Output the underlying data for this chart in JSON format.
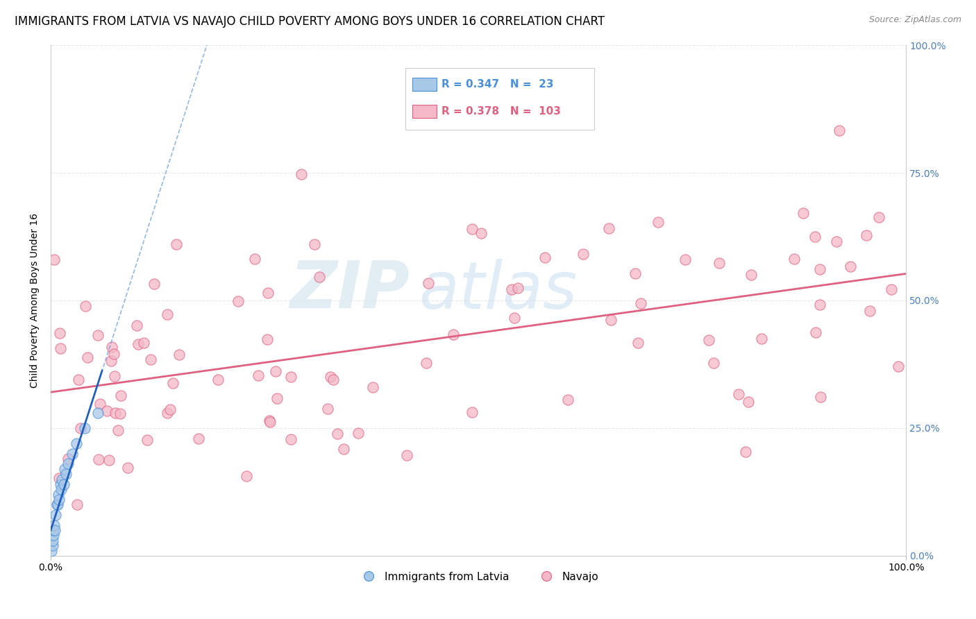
{
  "title": "IMMIGRANTS FROM LATVIA VS NAVAJO CHILD POVERTY AMONG BOYS UNDER 16 CORRELATION CHART",
  "source": "Source: ZipAtlas.com",
  "ylabel": "Child Poverty Among Boys Under 16",
  "watermark_zip": "ZIP",
  "watermark_atlas": "atlas",
  "legend_entries": [
    "Immigrants from Latvia",
    "Navajo"
  ],
  "r_latvia": 0.347,
  "n_latvia": 23,
  "r_navajo": 0.378,
  "n_navajo": 103,
  "color_latvia": "#a8c8e8",
  "color_navajo": "#f4b8c8",
  "edge_latvia": "#4a90d9",
  "edge_navajo": "#e06080",
  "trendline_latvia_color": "#2060c0",
  "trendline_dashed_color": "#6699dd",
  "trendline_navajo_color": "#e06080",
  "background_color": "#ffffff",
  "grid_color": "#e8e8e8",
  "xlim": [
    0.0,
    1.0
  ],
  "ylim": [
    0.0,
    1.0
  ],
  "tick_color_right": "#4a7fc0",
  "title_fontsize": 12,
  "axis_label_fontsize": 10,
  "tick_fontsize": 10,
  "legend_fontsize": 11,
  "source_fontsize": 9
}
